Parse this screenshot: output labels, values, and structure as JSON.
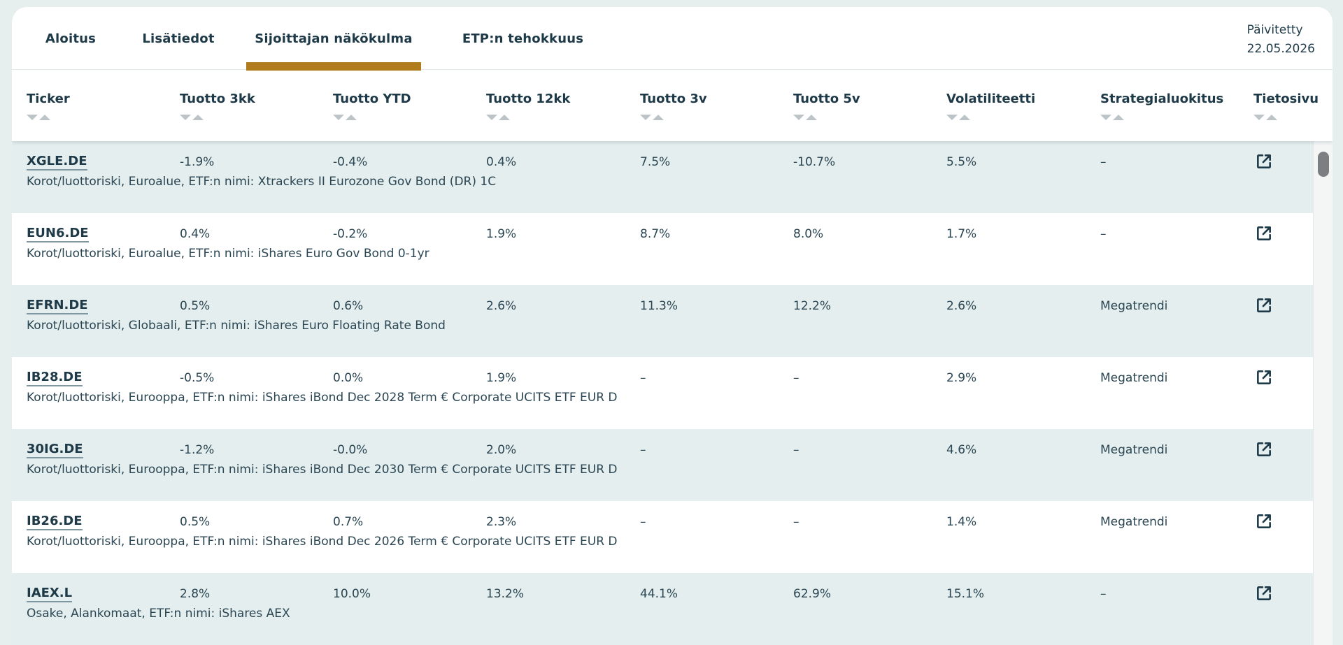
{
  "tabs": [
    {
      "label": "Aloitus",
      "active": false
    },
    {
      "label": "Lisätiedot",
      "active": false
    },
    {
      "label": "Sijoittajan näkökulma",
      "active": true
    },
    {
      "label": "ETP:n tehokkuus",
      "active": false
    }
  ],
  "updated": {
    "label": "Päivitetty",
    "date": "22.05.2026"
  },
  "colors": {
    "accent": "#b07d1e",
    "text": "#1e3a48",
    "row_shade": "#e4eeee"
  },
  "columns": [
    "Ticker",
    "Tuotto 3kk",
    "Tuotto YTD",
    "Tuotto 12kk",
    "Tuotto 3v",
    "Tuotto 5v",
    "Volatiliteetti",
    "Strategialuokitus",
    "Tietosivu"
  ],
  "sort_icon": "sort-arrows-icon",
  "link_icon": "external-link-icon",
  "rows": [
    {
      "ticker": "XGLE.DE",
      "r3kk": "-1.9%",
      "ytd": "-0.4%",
      "r12kk": "0.4%",
      "r3v": "7.5%",
      "r5v": "-10.7%",
      "vol": "5.5%",
      "strategy": "–",
      "desc": "Korot/luottoriski, Euroalue, ETF:n nimi: Xtrackers II Eurozone Gov Bond (DR) 1C"
    },
    {
      "ticker": "EUN6.DE",
      "r3kk": "0.4%",
      "ytd": "-0.2%",
      "r12kk": "1.9%",
      "r3v": "8.7%",
      "r5v": "8.0%",
      "vol": "1.7%",
      "strategy": "–",
      "desc": "Korot/luottoriski, Euroalue, ETF:n nimi: iShares Euro Gov Bond 0-1yr"
    },
    {
      "ticker": "EFRN.DE",
      "r3kk": "0.5%",
      "ytd": "0.6%",
      "r12kk": "2.6%",
      "r3v": "11.3%",
      "r5v": "12.2%",
      "vol": "2.6%",
      "strategy": "Megatrendi",
      "desc": "Korot/luottoriski, Globaali, ETF:n nimi: iShares Euro Floating Rate Bond"
    },
    {
      "ticker": "IB28.DE",
      "r3kk": "-0.5%",
      "ytd": "0.0%",
      "r12kk": "1.9%",
      "r3v": "–",
      "r5v": "–",
      "vol": "2.9%",
      "strategy": "Megatrendi",
      "desc": "Korot/luottoriski, Eurooppa, ETF:n nimi: iShares iBond Dec 2028 Term € Corporate UCITS ETF EUR D"
    },
    {
      "ticker": "30IG.DE",
      "r3kk": "-1.2%",
      "ytd": "-0.0%",
      "r12kk": "2.0%",
      "r3v": "–",
      "r5v": "–",
      "vol": "4.6%",
      "strategy": "Megatrendi",
      "desc": "Korot/luottoriski, Eurooppa, ETF:n nimi: iShares iBond Dec 2030 Term € Corporate UCITS ETF EUR D"
    },
    {
      "ticker": "IB26.DE",
      "r3kk": "0.5%",
      "ytd": "0.7%",
      "r12kk": "2.3%",
      "r3v": "–",
      "r5v": "–",
      "vol": "1.4%",
      "strategy": "Megatrendi",
      "desc": "Korot/luottoriski, Eurooppa, ETF:n nimi: iShares iBond Dec 2026 Term € Corporate UCITS ETF EUR D"
    },
    {
      "ticker": "IAEX.L",
      "r3kk": "2.8%",
      "ytd": "10.0%",
      "r12kk": "13.2%",
      "r3v": "44.1%",
      "r5v": "62.9%",
      "vol": "15.1%",
      "strategy": "–",
      "desc": "Osake, Alankomaat, ETF:n nimi: iShares AEX"
    }
  ]
}
